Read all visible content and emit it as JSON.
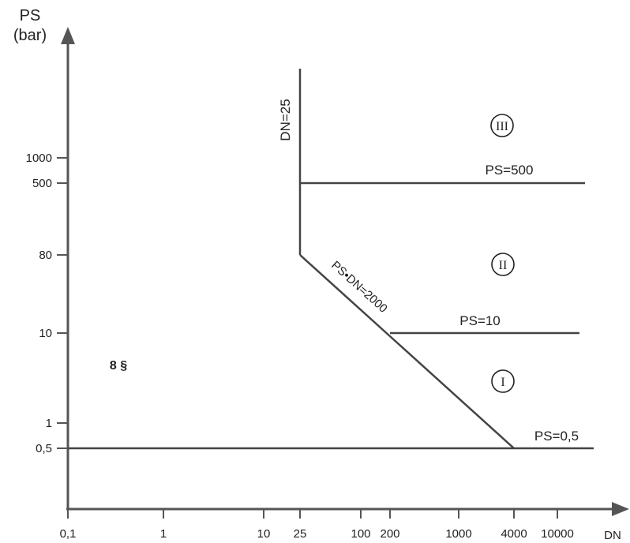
{
  "chart_data": {
    "type": "line",
    "title": "",
    "ylabel_line1": "PS",
    "ylabel_line2": "(bar)",
    "xlabel": "DN",
    "x_ticks": [
      "0,1",
      "1",
      "10",
      "25",
      "100",
      "200",
      "1000",
      "4000",
      "10000"
    ],
    "y_ticks": [
      "0,5",
      "1",
      "10",
      "80",
      "500",
      "1000"
    ],
    "boundaries": [
      {
        "label": "DN=25",
        "x": 25,
        "y_range": [
          80,
          "top"
        ]
      },
      {
        "label": "PS=500",
        "y": 500,
        "x_range": [
          25,
          "right"
        ]
      },
      {
        "label": "PS•DN=2000",
        "x_range": [
          25,
          4000
        ],
        "y_range": [
          80,
          0.5
        ]
      },
      {
        "label": "PS=10",
        "y": 10,
        "x_range": [
          200,
          "right"
        ]
      },
      {
        "label": "PS=0,5",
        "y": 0.5,
        "x_range": [
          0.1,
          "right"
        ]
      }
    ],
    "regions": [
      {
        "label": "III"
      },
      {
        "label": "II"
      },
      {
        "label": "I"
      },
      {
        "label": "8 §"
      }
    ]
  }
}
